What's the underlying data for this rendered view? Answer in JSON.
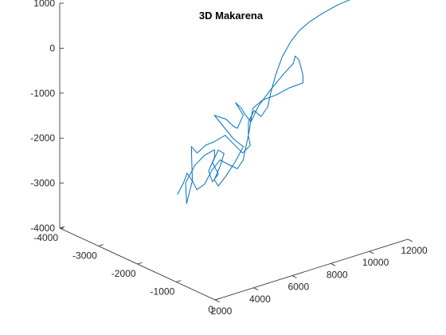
{
  "chart_data": {
    "type": "line",
    "title": "3D Makarena",
    "projection": "3d",
    "grid": false,
    "xlim": [
      2000,
      12000
    ],
    "ylim": [
      -4000,
      0
    ],
    "zlim": [
      -4000,
      1000
    ],
    "x_ticks": [
      "2000",
      "4000",
      "6000",
      "8000",
      "10000",
      "12000"
    ],
    "y_ticks": [
      "0",
      "-1000",
      "-2000",
      "-3000",
      "-4000"
    ],
    "z_ticks": [
      "1000",
      "0",
      "-1000",
      "-2000",
      "-3000",
      "-4000"
    ],
    "series": [
      {
        "color": "#0072BD",
        "points": [
          [
            10800,
            -800,
            1200
          ],
          [
            9900,
            -750,
            1200
          ],
          [
            9000,
            -700,
            1150
          ],
          [
            8300,
            -700,
            1050
          ],
          [
            7900,
            -750,
            900
          ],
          [
            7650,
            -850,
            650
          ],
          [
            7400,
            -950,
            300
          ],
          [
            7150,
            -1000,
            -100
          ],
          [
            7000,
            -1050,
            -500
          ],
          [
            7050,
            -1150,
            -850
          ],
          [
            6800,
            -1200,
            -1050
          ],
          [
            6550,
            -1250,
            -900
          ],
          [
            6350,
            -1300,
            -1150
          ],
          [
            6450,
            -1350,
            -1500
          ],
          [
            6650,
            -1400,
            -1750
          ],
          [
            6350,
            -1450,
            -1900
          ],
          [
            5950,
            -1500,
            -1650
          ],
          [
            5650,
            -1550,
            -1450
          ],
          [
            5200,
            -1600,
            -1550
          ],
          [
            4850,
            -1650,
            -1600
          ],
          [
            4500,
            -1700,
            -1750
          ],
          [
            4300,
            -1750,
            -1600
          ],
          [
            4450,
            -1800,
            -2400
          ],
          [
            4250,
            -1850,
            -2900
          ],
          [
            4400,
            -1950,
            -2500
          ],
          [
            5000,
            -2000,
            -2200
          ],
          [
            5500,
            -2000,
            -2050
          ],
          [
            6000,
            -2000,
            -2000
          ],
          [
            6100,
            -2050,
            -2200
          ],
          [
            5900,
            -2100,
            -2500
          ],
          [
            6200,
            -2150,
            -2800
          ],
          [
            6600,
            -2200,
            -2700
          ],
          [
            6300,
            -2200,
            -2400
          ],
          [
            6700,
            -2250,
            -2200
          ],
          [
            7100,
            -2300,
            -2350
          ],
          [
            6900,
            -2300,
            -2600
          ],
          [
            6700,
            -2350,
            -2900
          ],
          [
            7000,
            -2400,
            -3100
          ],
          [
            7300,
            -2350,
            -2900
          ],
          [
            7700,
            -2300,
            -2600
          ],
          [
            8000,
            -2250,
            -2300
          ],
          [
            7600,
            -2300,
            -2100
          ],
          [
            7200,
            -2350,
            -1800
          ],
          [
            6800,
            -2400,
            -1500
          ],
          [
            7500,
            -2450,
            -1700
          ],
          [
            8000,
            -2500,
            -1950
          ],
          [
            8300,
            -2550,
            -2050
          ],
          [
            8600,
            -2550,
            -1800
          ],
          [
            8300,
            -2600,
            -1500
          ],
          [
            8700,
            -2650,
            -1700
          ],
          [
            9000,
            -2700,
            -1900
          ],
          [
            9300,
            -2700,
            -2100
          ],
          [
            9700,
            -2700,
            -1800
          ],
          [
            10200,
            -2650,
            -1500
          ],
          [
            10800,
            -2600,
            -1200
          ],
          [
            11200,
            -2550,
            -1000
          ],
          [
            11300,
            -2550,
            -850
          ],
          [
            11600,
            -2600,
            -1000
          ],
          [
            11900,
            -2650,
            -1400
          ],
          [
            12000,
            -2700,
            -1600
          ],
          [
            11400,
            -2750,
            -1650
          ],
          [
            10800,
            -2800,
            -1750
          ],
          [
            10200,
            -2850,
            -1800
          ],
          [
            9800,
            -2900,
            -1950
          ],
          [
            9700,
            -2950,
            -2500
          ],
          [
            9500,
            -3000,
            -3100
          ],
          [
            9200,
            -3000,
            -3250
          ],
          [
            8900,
            -3050,
            -3150
          ],
          [
            8500,
            -3100,
            -3000
          ],
          [
            8200,
            -3150,
            -3200
          ],
          [
            7900,
            -3200,
            -3500
          ],
          [
            7600,
            -3250,
            -3600
          ],
          [
            7400,
            -3250,
            -3400
          ],
          [
            7200,
            -3300,
            -3200
          ],
          [
            7000,
            -3300,
            -3400
          ],
          [
            6700,
            -3300,
            -3600
          ]
        ]
      }
    ]
  }
}
